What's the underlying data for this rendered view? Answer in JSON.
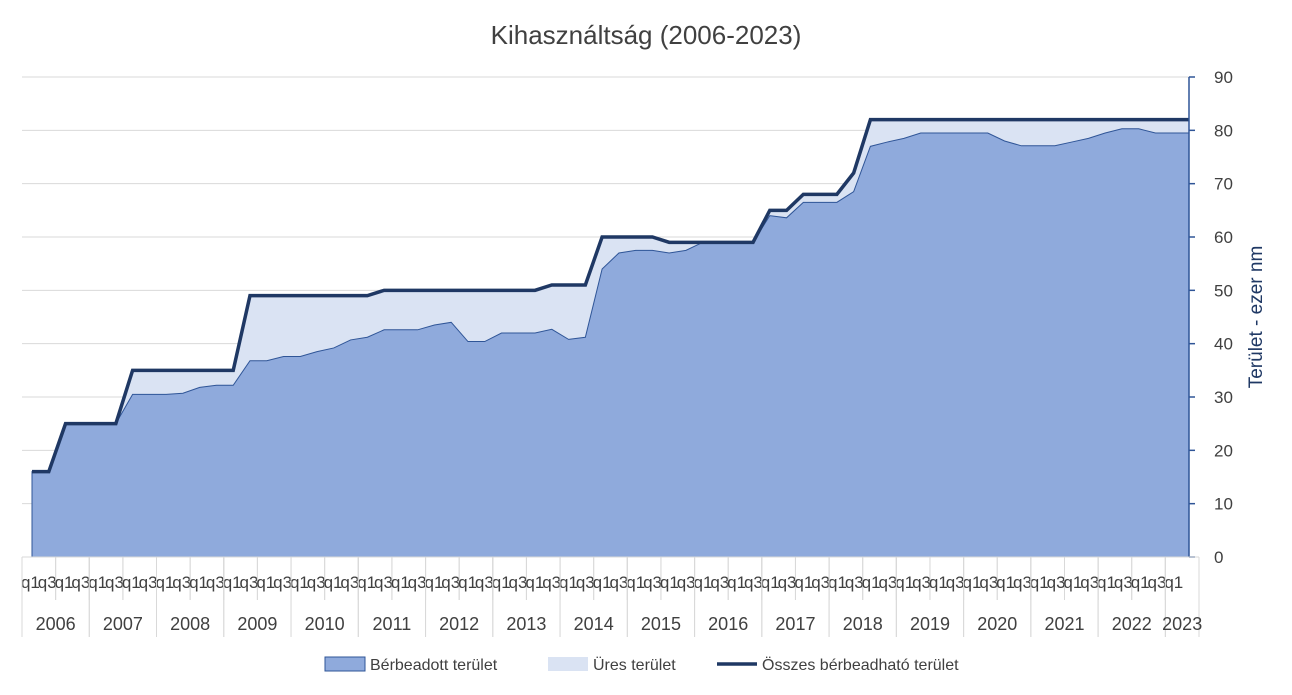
{
  "chart_data": {
    "type": "area",
    "title": "Kihasználtság (2006-2023)",
    "ylabel": "Terület - ezer nm",
    "ylim": [
      0,
      90
    ],
    "y_ticks": [
      "0",
      "10",
      "20",
      "30",
      "40",
      "50",
      "60",
      "70",
      "80",
      "90"
    ],
    "years": [
      "2006",
      "2007",
      "2008",
      "2009",
      "2010",
      "2011",
      "2012",
      "2013",
      "2014",
      "2015",
      "2016",
      "2017",
      "2018",
      "2019",
      "2020",
      "2021",
      "2022",
      "2023"
    ],
    "quarter_labels": [
      "q1",
      "q3"
    ],
    "x": [
      "2006 q1",
      "2006 q2",
      "2006 q3",
      "2006 q4",
      "2007 q1",
      "2007 q2",
      "2007 q3",
      "2007 q4",
      "2008 q1",
      "2008 q2",
      "2008 q3",
      "2008 q4",
      "2009 q1",
      "2009 q2",
      "2009 q3",
      "2009 q4",
      "2010 q1",
      "2010 q2",
      "2010 q3",
      "2010 q4",
      "2011 q1",
      "2011 q2",
      "2011 q3",
      "2011 q4",
      "2012 q1",
      "2012 q2",
      "2012 q3",
      "2012 q4",
      "2013 q1",
      "2013 q2",
      "2013 q3",
      "2013 q4",
      "2014 q1",
      "2014 q2",
      "2014 q3",
      "2014 q4",
      "2015 q1",
      "2015 q2",
      "2015 q3",
      "2015 q4",
      "2016 q1",
      "2016 q2",
      "2016 q3",
      "2016 q4",
      "2017 q1",
      "2017 q2",
      "2017 q3",
      "2017 q4",
      "2018 q1",
      "2018 q2",
      "2018 q3",
      "2018 q4",
      "2019 q1",
      "2019 q2",
      "2019 q3",
      "2019 q4",
      "2020 q1",
      "2020 q2",
      "2020 q3",
      "2020 q4",
      "2021 q1",
      "2021 q2",
      "2021 q3",
      "2021 q4",
      "2022 q1",
      "2022 q2",
      "2022 q3",
      "2022 q4",
      "2023 q1",
      "2023 q2"
    ],
    "series": [
      {
        "name": "Bérbeadott terület",
        "type": "area",
        "color": "#8faadc",
        "values": [
          16,
          16,
          25,
          25,
          25,
          25,
          30.5,
          30.5,
          30.5,
          30.7,
          31.8,
          32.2,
          32.2,
          36.8,
          36.8,
          37.6,
          37.6,
          38.5,
          39.2,
          40.7,
          41.2,
          42.6,
          42.6,
          42.6,
          43.5,
          44,
          40.4,
          40.4,
          42,
          42,
          42,
          42.7,
          40.8,
          41.2,
          54,
          57,
          57.5,
          57.5,
          57,
          57.5,
          59,
          59,
          59,
          59,
          64,
          63.6,
          66.5,
          66.5,
          66.5,
          68.5,
          77,
          77.8,
          78.5,
          79.5,
          79.5,
          79.5,
          79.5,
          79.5,
          78,
          77.1,
          77.1,
          77.1,
          77.8,
          78.5,
          79.5,
          80.3,
          80.3,
          79.5,
          79.5,
          79.5
        ]
      },
      {
        "name": "Üres terület",
        "type": "area",
        "color": "#dae3f3",
        "values": [
          0,
          0,
          0,
          0,
          0,
          0,
          4.5,
          4.5,
          4.5,
          4.3,
          3.2,
          2.8,
          2.8,
          12.2,
          12.2,
          11.4,
          11.4,
          10.5,
          9.8,
          8.3,
          7.8,
          7.4,
          7.4,
          7.4,
          6.5,
          6,
          9.6,
          9.6,
          8,
          8,
          8,
          8.3,
          10.2,
          9.8,
          6,
          3,
          2.5,
          2.5,
          2,
          1.5,
          0,
          0,
          0,
          0,
          1,
          1.4,
          1.5,
          1.5,
          1.5,
          3.5,
          5,
          4.2,
          3.5,
          2.5,
          2.5,
          2.5,
          2.5,
          2.5,
          4,
          4.9,
          4.9,
          4.9,
          4.2,
          3.5,
          2.5,
          1.7,
          1.7,
          2.5,
          2.5,
          2.5
        ]
      },
      {
        "name": "Összes bérbeadható terület",
        "type": "line",
        "color": "#1f3864",
        "values": [
          16,
          16,
          25,
          25,
          25,
          25,
          35,
          35,
          35,
          35,
          35,
          35,
          35,
          49,
          49,
          49,
          49,
          49,
          49,
          49,
          49,
          50,
          50,
          50,
          50,
          50,
          50,
          50,
          50,
          50,
          50,
          51,
          51,
          51,
          60,
          60,
          60,
          60,
          59,
          59,
          59,
          59,
          59,
          59,
          65,
          65,
          68,
          68,
          68,
          72,
          82,
          82,
          82,
          82,
          82,
          82,
          82,
          82,
          82,
          82,
          82,
          82,
          82,
          82,
          82,
          82,
          82,
          82,
          82,
          82
        ]
      }
    ],
    "legend_position": "bottom"
  }
}
